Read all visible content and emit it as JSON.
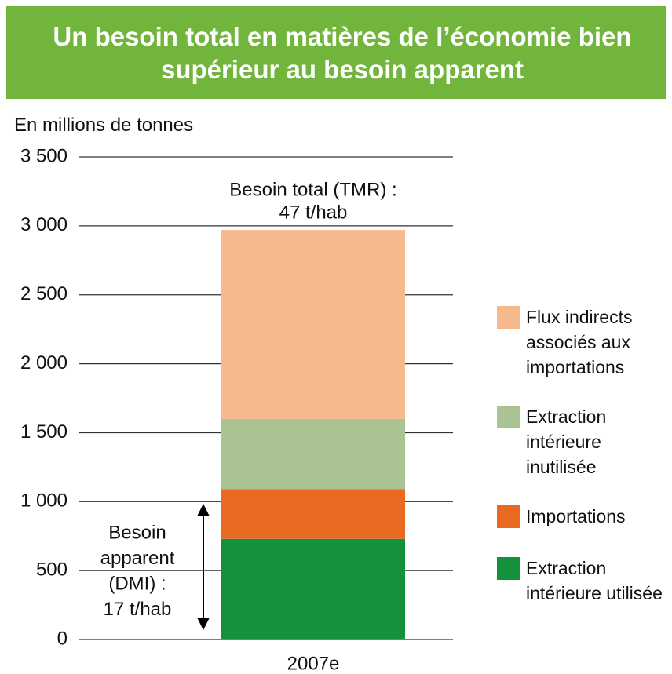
{
  "chart_data": {
    "type": "stacked_bar",
    "title": "Un besoin total en matières de l’économie bien supérieur au besoin apparent",
    "y_label": "En millions de tonnes",
    "categories": [
      "2007e"
    ],
    "series": [
      {
        "name": "Extraction intérieure utilisée",
        "color": "#13923b",
        "values": [
          730
        ]
      },
      {
        "name": "Importations",
        "color": "#ea6a21",
        "values": [
          360
        ]
      },
      {
        "name": "Extraction intérieure inutilisée",
        "color": "#a9c492",
        "values": [
          510
        ]
      },
      {
        "name": "Flux indirects associés aux importations",
        "color": "#f6b98e",
        "values": [
          1370
        ]
      }
    ],
    "ylim": [
      0,
      3500
    ],
    "yticks": [
      0,
      500,
      {
        "value": 1000,
        "label": "1 000"
      },
      {
        "value": 1500,
        "label": "1 500"
      },
      {
        "value": 2000,
        "label": "2 000"
      },
      {
        "value": 2500,
        "label": "2 500"
      },
      {
        "value": 3000,
        "label": "3 000"
      },
      {
        "value": 3500,
        "label": "3 500"
      }
    ],
    "grid": true,
    "annotations": [
      {
        "text": [
          "Besoin total (TMR) :",
          "47 t/hab"
        ]
      },
      {
        "text": [
          "Besoin",
          "apparent",
          "(DMI) :",
          "17 t/hab"
        ]
      }
    ]
  }
}
